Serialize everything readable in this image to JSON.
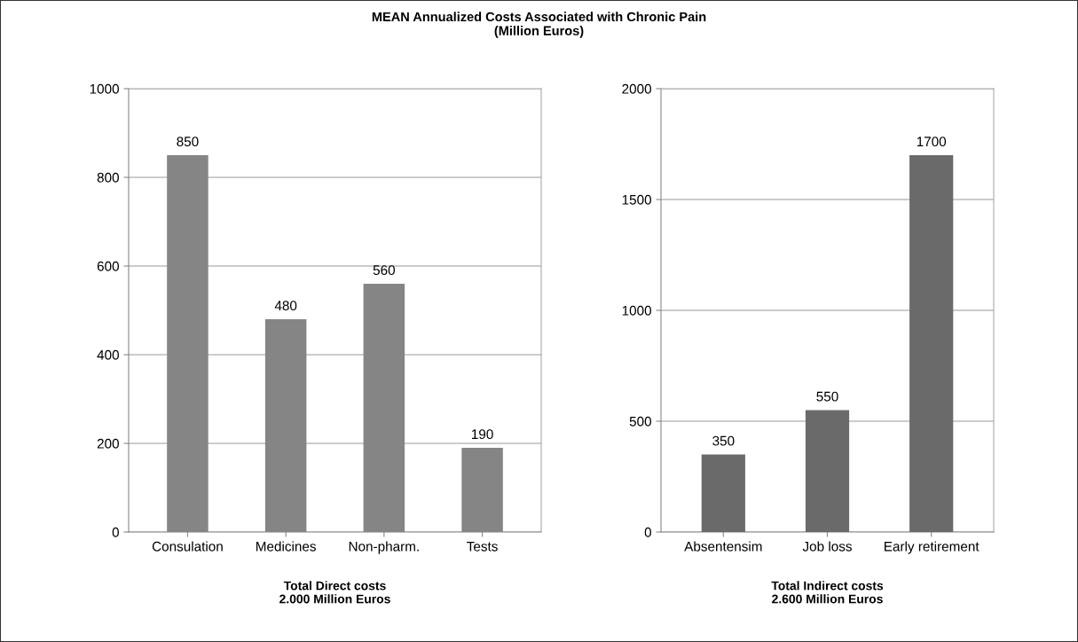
{
  "chart_data": [
    {
      "type": "bar",
      "title": "MEAN Annualized Costs Associated with Chronic Pain\n(Million Euros)",
      "categories": [
        "Consulation",
        "Medicines",
        "Non-pharm.",
        "Tests"
      ],
      "values": [
        850,
        480,
        560,
        190
      ],
      "color": "#858585",
      "ylim": [
        0,
        1000
      ],
      "yticks": [
        0,
        200,
        400,
        600,
        800,
        1000
      ],
      "grid": "y",
      "data_labels": true,
      "xlabel": "Total Direct costs\n2.000 Million Euros"
    },
    {
      "type": "bar",
      "categories": [
        "Absentensim",
        "Job loss",
        "Early retirement"
      ],
      "values": [
        350,
        550,
        1700
      ],
      "color": "#6a6a6a",
      "ylim": [
        0,
        2000
      ],
      "yticks": [
        0,
        500,
        1000,
        1500,
        2000
      ],
      "grid": "y",
      "data_labels": true,
      "xlabel": "Total Indirect costs\n2.600 Million Euros"
    }
  ]
}
